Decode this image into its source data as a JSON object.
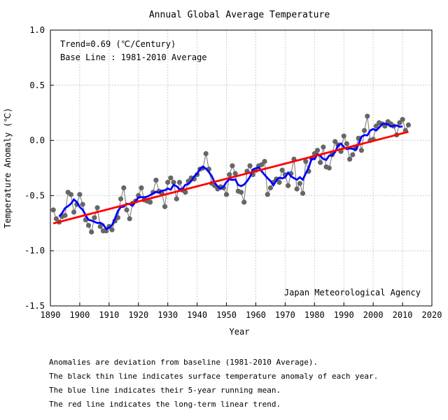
{
  "chart_data": {
    "type": "line",
    "title": "Annual Global Average Temperature",
    "xlabel": "Year",
    "ylabel": "Temperature Anomaly (℃)",
    "xlim": [
      1890,
      2020
    ],
    "ylim": [
      -1.5,
      1.0
    ],
    "xticks": [
      1890,
      1900,
      1910,
      1920,
      1930,
      1940,
      1950,
      1960,
      1970,
      1980,
      1990,
      2000,
      2010,
      2020
    ],
    "yticks": [
      1.0,
      0.5,
      0.0,
      -0.5,
      -1.0,
      -1.5
    ],
    "ytick_labels": [
      "1.0",
      "0.5",
      "0.0",
      "-0.5",
      "-1.0",
      "-1.5"
    ],
    "grid": true,
    "annotations": {
      "trend": "Trend=0.69 (℃/Century)",
      "baseline": "Base Line : 1981-2010 Average",
      "source": "Japan Meteorological Agency"
    },
    "x_start_year": 1891,
    "series": [
      {
        "role": "annual anomaly",
        "color": "#666666",
        "values": [
          -0.63,
          -0.71,
          -0.74,
          -0.69,
          -0.68,
          -0.47,
          -0.49,
          -0.65,
          -0.58,
          -0.49,
          -0.58,
          -0.72,
          -0.77,
          -0.83,
          -0.7,
          -0.61,
          -0.78,
          -0.82,
          -0.82,
          -0.78,
          -0.81,
          -0.73,
          -0.7,
          -0.53,
          -0.43,
          -0.63,
          -0.71,
          -0.57,
          -0.55,
          -0.5,
          -0.43,
          -0.54,
          -0.55,
          -0.56,
          -0.47,
          -0.36,
          -0.46,
          -0.48,
          -0.6,
          -0.38,
          -0.34,
          -0.38,
          -0.53,
          -0.38,
          -0.45,
          -0.47,
          -0.37,
          -0.34,
          -0.35,
          -0.31,
          -0.26,
          -0.25,
          -0.12,
          -0.26,
          -0.39,
          -0.41,
          -0.44,
          -0.42,
          -0.43,
          -0.49,
          -0.31,
          -0.23,
          -0.3,
          -0.46,
          -0.47,
          -0.56,
          -0.28,
          -0.23,
          -0.31,
          -0.27,
          -0.23,
          -0.22,
          -0.19,
          -0.49,
          -0.43,
          -0.38,
          -0.35,
          -0.38,
          -0.27,
          -0.31,
          -0.41,
          -0.3,
          -0.17,
          -0.44,
          -0.39,
          -0.48,
          -0.19,
          -0.28,
          -0.16,
          -0.12,
          -0.09,
          -0.2,
          -0.06,
          -0.24,
          -0.25,
          -0.13,
          -0.01,
          -0.04,
          -0.1,
          0.04,
          -0.03,
          -0.17,
          -0.13,
          -0.07,
          0.02,
          -0.09,
          0.09,
          0.22,
          0.0,
          0.01,
          0.13,
          0.16,
          0.15,
          0.13,
          0.17,
          0.15,
          0.13,
          0.05,
          0.16,
          0.19,
          0.09,
          0.14
        ]
      },
      {
        "role": "5-year running mean",
        "color": "#0000ff"
      },
      {
        "role": "linear trend",
        "color": "#ff0000"
      }
    ]
  },
  "notes": [
    "Anomalies are deviation from baseline (1981-2010 Average).",
    "The black thin line indicates surface temperature anomaly of each year.",
    "The blue line indicates their 5-year running mean.",
    "The red line indicates the long-term linear trend."
  ]
}
